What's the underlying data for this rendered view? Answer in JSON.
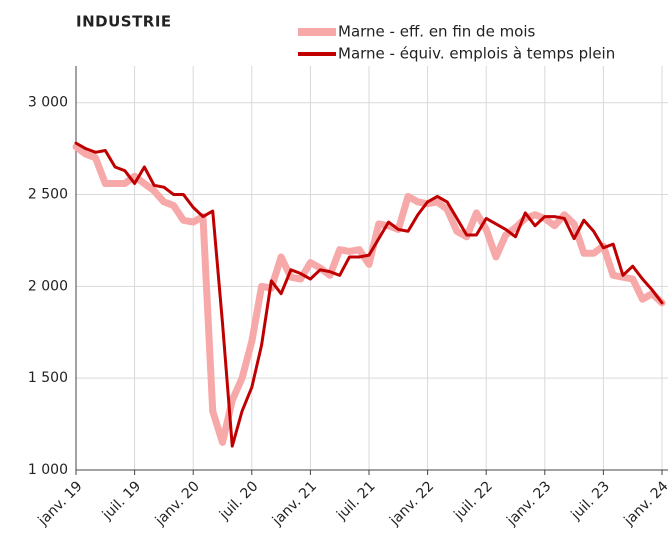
{
  "chart_data": {
    "type": "line",
    "title": "INDUSTRIE",
    "categories": [
      "janv. 19",
      null,
      null,
      null,
      null,
      null,
      "juil. 19",
      null,
      null,
      null,
      null,
      null,
      "janv. 20",
      null,
      null,
      null,
      null,
      null,
      "juil. 20",
      null,
      null,
      null,
      null,
      null,
      "janv. 21",
      null,
      null,
      null,
      null,
      null,
      "juil. 21",
      null,
      null,
      null,
      null,
      null,
      "janv. 22",
      null,
      null,
      null,
      null,
      null,
      "juil. 22",
      null,
      null,
      null,
      null,
      null,
      "janv. 23",
      null,
      null,
      null,
      null,
      null,
      "juil. 23",
      null,
      null,
      null,
      null,
      null,
      "janv. 24"
    ],
    "series": [
      {
        "name": "Marne - eff. en fin de mois",
        "color": "#f7a8a8",
        "values": [
          2760,
          2720,
          2700,
          2560,
          2560,
          2560,
          2600,
          2560,
          2520,
          2460,
          2440,
          2360,
          2350,
          2380,
          1320,
          1150,
          1380,
          1500,
          1700,
          2000,
          1990,
          2160,
          2050,
          2040,
          2130,
          2100,
          2060,
          2200,
          2190,
          2200,
          2120,
          2340,
          2330,
          2310,
          2490,
          2460,
          2450,
          2460,
          2420,
          2300,
          2270,
          2400,
          2310,
          2160,
          2280,
          2320,
          2370,
          2390,
          2370,
          2330,
          2390,
          2340,
          2180,
          2180,
          2220,
          2060,
          2050,
          2040,
          1930,
          1960,
          1910
        ]
      },
      {
        "name": "Marne - équiv. emplois à temps plein",
        "color": "#c00000",
        "values": [
          2780,
          2750,
          2730,
          2740,
          2650,
          2630,
          2560,
          2650,
          2550,
          2540,
          2500,
          2500,
          2430,
          2380,
          2410,
          1800,
          1130,
          1320,
          1450,
          1680,
          2030,
          1960,
          2090,
          2070,
          2040,
          2090,
          2080,
          2060,
          2160,
          2160,
          2170,
          2260,
          2350,
          2310,
          2300,
          2390,
          2460,
          2490,
          2460,
          2370,
          2280,
          2280,
          2370,
          2340,
          2310,
          2270,
          2400,
          2330,
          2380,
          2380,
          2370,
          2260,
          2360,
          2300,
          2210,
          2230,
          2060,
          2110,
          2040,
          1980,
          1910
        ]
      }
    ],
    "ylim": [
      1000,
      3200
    ],
    "yticks": [
      {
        "value": 1000,
        "label": "1 000"
      },
      {
        "value": 1500,
        "label": "1 500"
      },
      {
        "value": 2000,
        "label": "2 000"
      },
      {
        "value": 2500,
        "label": "2 500"
      },
      {
        "value": 3000,
        "label": "3 000"
      }
    ],
    "grid": true
  }
}
